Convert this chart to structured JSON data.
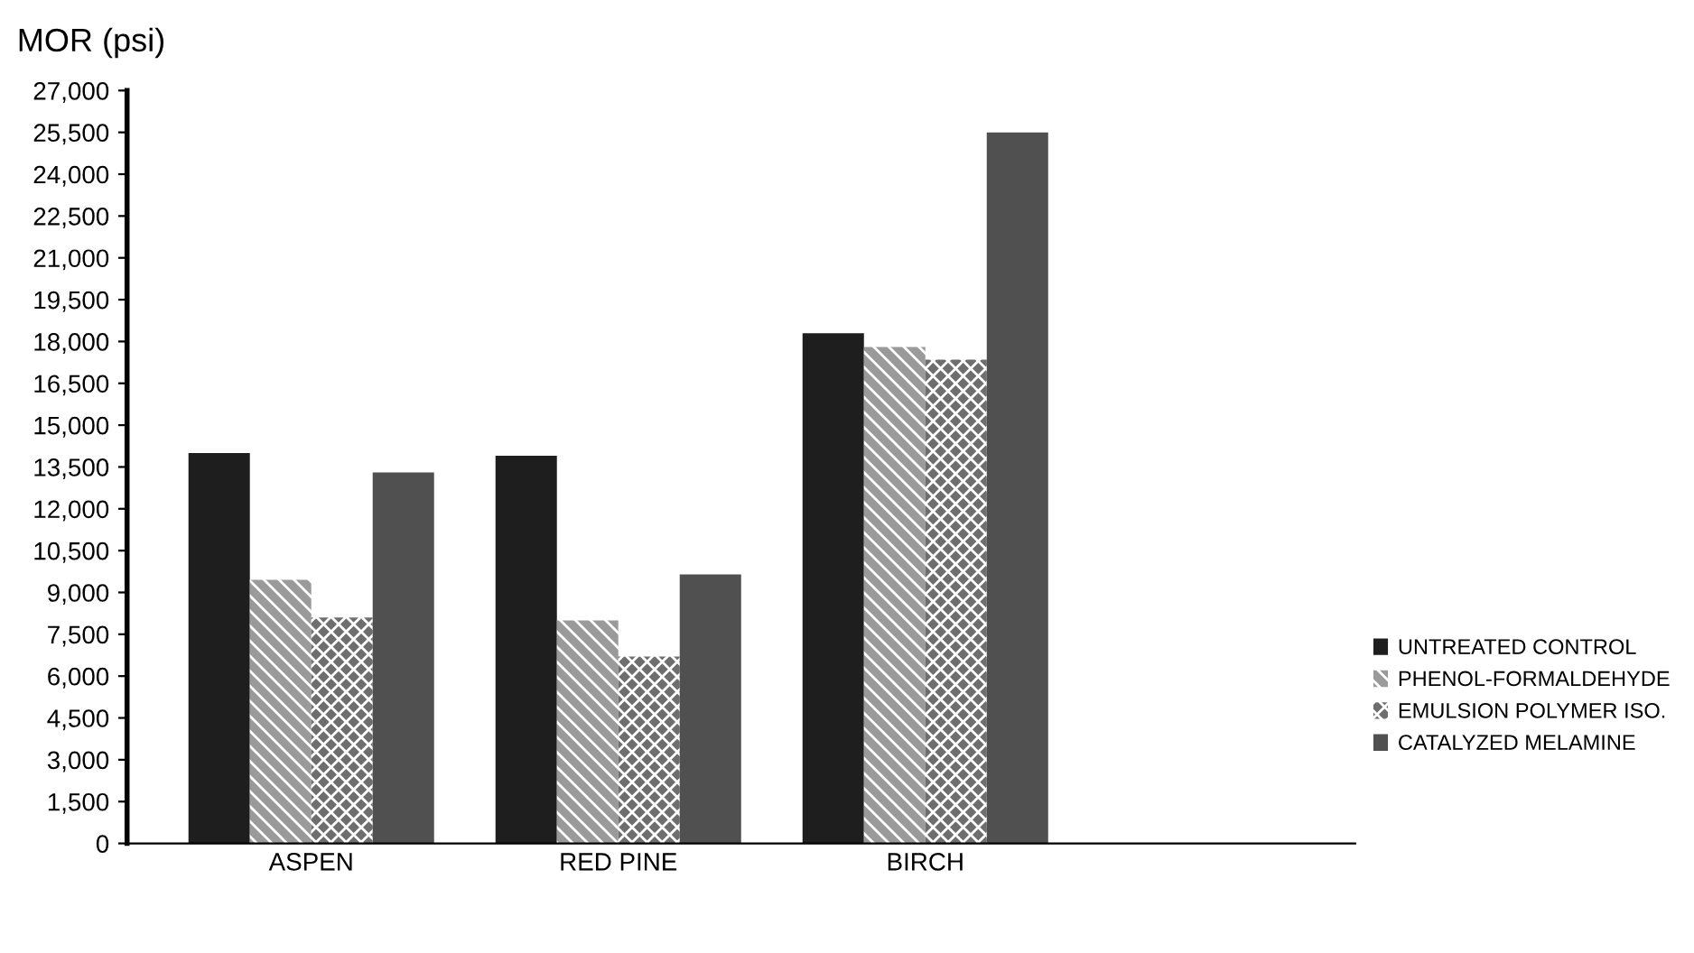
{
  "chart_data": {
    "type": "bar",
    "ylabel": "MOR (psi)",
    "categories": [
      "ASPEN",
      "RED PINE",
      "BIRCH"
    ],
    "series": [
      {
        "name": "UNTREATED CONTROL",
        "color": "#1e1e1e",
        "values": [
          14000,
          13900,
          18300
        ]
      },
      {
        "name": "PHENOL-FORMALDEHYDE",
        "color": "#9a9a9a",
        "values": [
          9450,
          8000,
          17800
        ]
      },
      {
        "name": "EMULSION POLYMER ISO.",
        "color": "#6e6e6e",
        "values": [
          8100,
          6700,
          17350
        ]
      },
      {
        "name": "CATALYZED MELAMINE",
        "color": "#505050",
        "values": [
          13300,
          9650,
          25500
        ]
      }
    ],
    "ylim": [
      0,
      27000
    ],
    "yticks": [
      {
        "value": 0,
        "label": "0"
      },
      {
        "value": 1500,
        "label": "1,500"
      },
      {
        "value": 3000,
        "label": "3,000"
      },
      {
        "value": 4500,
        "label": "4,500"
      },
      {
        "value": 6000,
        "label": "6,000"
      },
      {
        "value": 7500,
        "label": "7,500"
      },
      {
        "value": 9000,
        "label": "9,000"
      },
      {
        "value": 10500,
        "label": "10,500"
      },
      {
        "value": 12000,
        "label": "12,000"
      },
      {
        "value": 13500,
        "label": "13,500"
      },
      {
        "value": 15000,
        "label": "15,000"
      },
      {
        "value": 16500,
        "label": "16,500"
      },
      {
        "value": 18000,
        "label": "18,000"
      },
      {
        "value": 19500,
        "label": "19,500"
      },
      {
        "value": 21000,
        "label": "21,000"
      },
      {
        "value": 22500,
        "label": "22,500"
      },
      {
        "value": 24000,
        "label": "24,000"
      },
      {
        "value": 25500,
        "label": "25,500"
      },
      {
        "value": 27000,
        "label": "27,000"
      }
    ],
    "grid": false,
    "legend": "right"
  }
}
